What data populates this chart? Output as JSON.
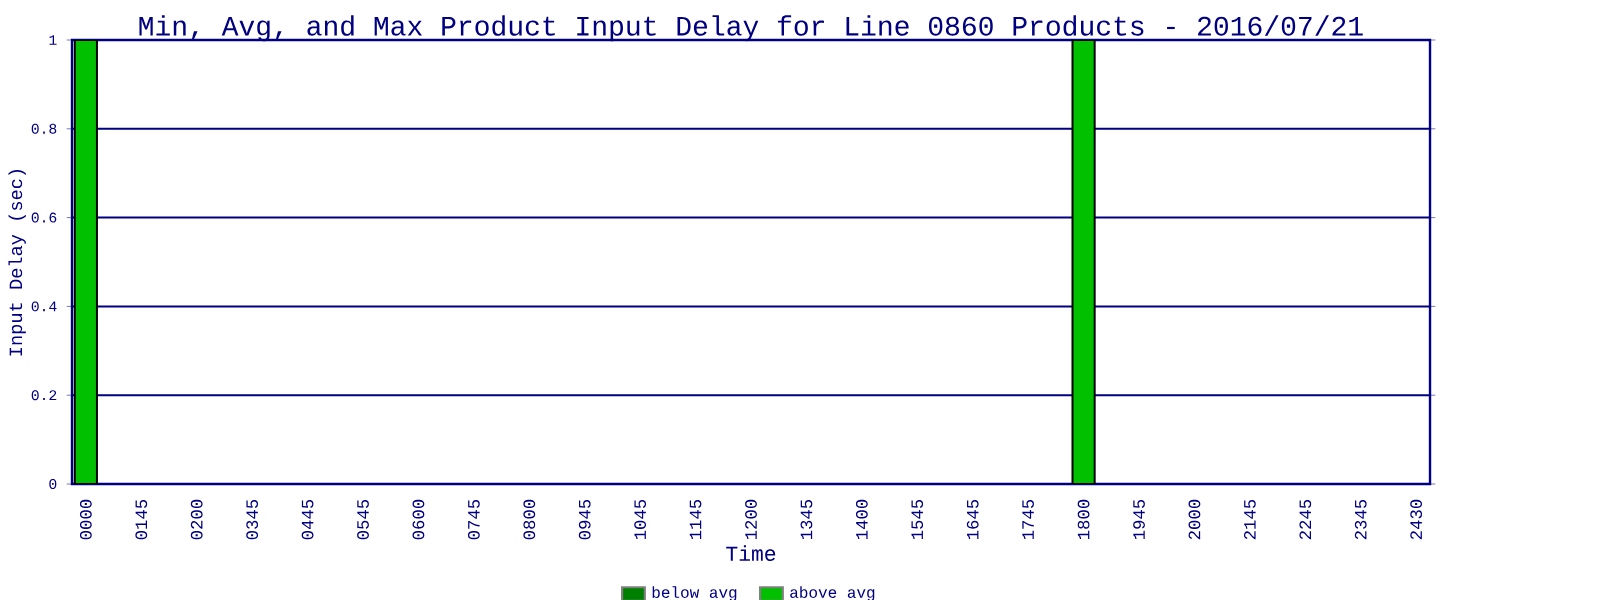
{
  "chart_data": {
    "type": "bar",
    "stacked": true,
    "title": "Min, Avg, and Max Product Input Delay for Line 0860 Products - 2016/07/21",
    "xlabel": "Time",
    "ylabel": "Input Delay (sec)",
    "categories": [
      "0000",
      "0145",
      "0200",
      "0345",
      "0445",
      "0545",
      "0600",
      "0745",
      "0800",
      "0945",
      "1045",
      "1145",
      "1200",
      "1345",
      "1400",
      "1545",
      "1645",
      "1745",
      "1800",
      "1945",
      "2000",
      "2145",
      "2245",
      "2345",
      "2430"
    ],
    "series": [
      {
        "name": "below avg",
        "color": "#008000",
        "values": [
          0,
          null,
          null,
          null,
          null,
          null,
          null,
          null,
          null,
          null,
          null,
          null,
          null,
          null,
          null,
          null,
          null,
          null,
          0,
          null,
          null,
          null,
          null,
          null,
          null
        ]
      },
      {
        "name": "above avg",
        "color": "#00c000",
        "values": [
          1,
          null,
          null,
          null,
          null,
          null,
          null,
          null,
          null,
          null,
          null,
          null,
          null,
          null,
          null,
          null,
          null,
          null,
          1,
          null,
          null,
          null,
          null,
          null,
          null
        ]
      }
    ],
    "ylim": [
      0,
      1
    ],
    "yticks": [
      0,
      0.2,
      0.4,
      0.6,
      0.8,
      1
    ],
    "grid": "y",
    "legend": "bottom"
  }
}
